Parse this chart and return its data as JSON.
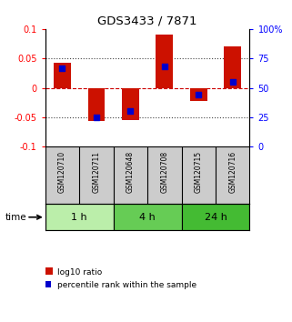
{
  "title": "GDS3433 / 7871",
  "samples": [
    "GSM120710",
    "GSM120711",
    "GSM120648",
    "GSM120708",
    "GSM120715",
    "GSM120716"
  ],
  "log10_ratio": [
    0.042,
    -0.057,
    -0.055,
    0.09,
    -0.022,
    0.07
  ],
  "percentile_rank": [
    67,
    25,
    30,
    68,
    44,
    55
  ],
  "ylim": [
    -0.1,
    0.1
  ],
  "yticks": [
    -0.1,
    -0.05,
    0,
    0.05,
    0.1
  ],
  "ytick_labels_left": [
    "-0.1",
    "-0.05",
    "0",
    "0.05",
    "0.1"
  ],
  "ytick_labels_right": [
    "0",
    "25",
    "50",
    "75",
    "100%"
  ],
  "hlines": [
    0.05,
    -0.05
  ],
  "hline_zero_color": "#cc0000",
  "hline_color": "#444444",
  "bar_color": "#cc1100",
  "blue_color": "#0000cc",
  "time_groups": [
    {
      "label": "1 h",
      "start": 0,
      "end": 2,
      "color": "#bbeeaa"
    },
    {
      "label": "4 h",
      "start": 2,
      "end": 4,
      "color": "#66cc55"
    },
    {
      "label": "24 h",
      "start": 4,
      "end": 6,
      "color": "#44bb33"
    }
  ],
  "sample_bg_color": "#cccccc",
  "bar_width": 0.5,
  "legend_items": [
    {
      "label": "log10 ratio",
      "color": "#cc1100"
    },
    {
      "label": "percentile rank within the sample",
      "color": "#0000cc"
    }
  ]
}
